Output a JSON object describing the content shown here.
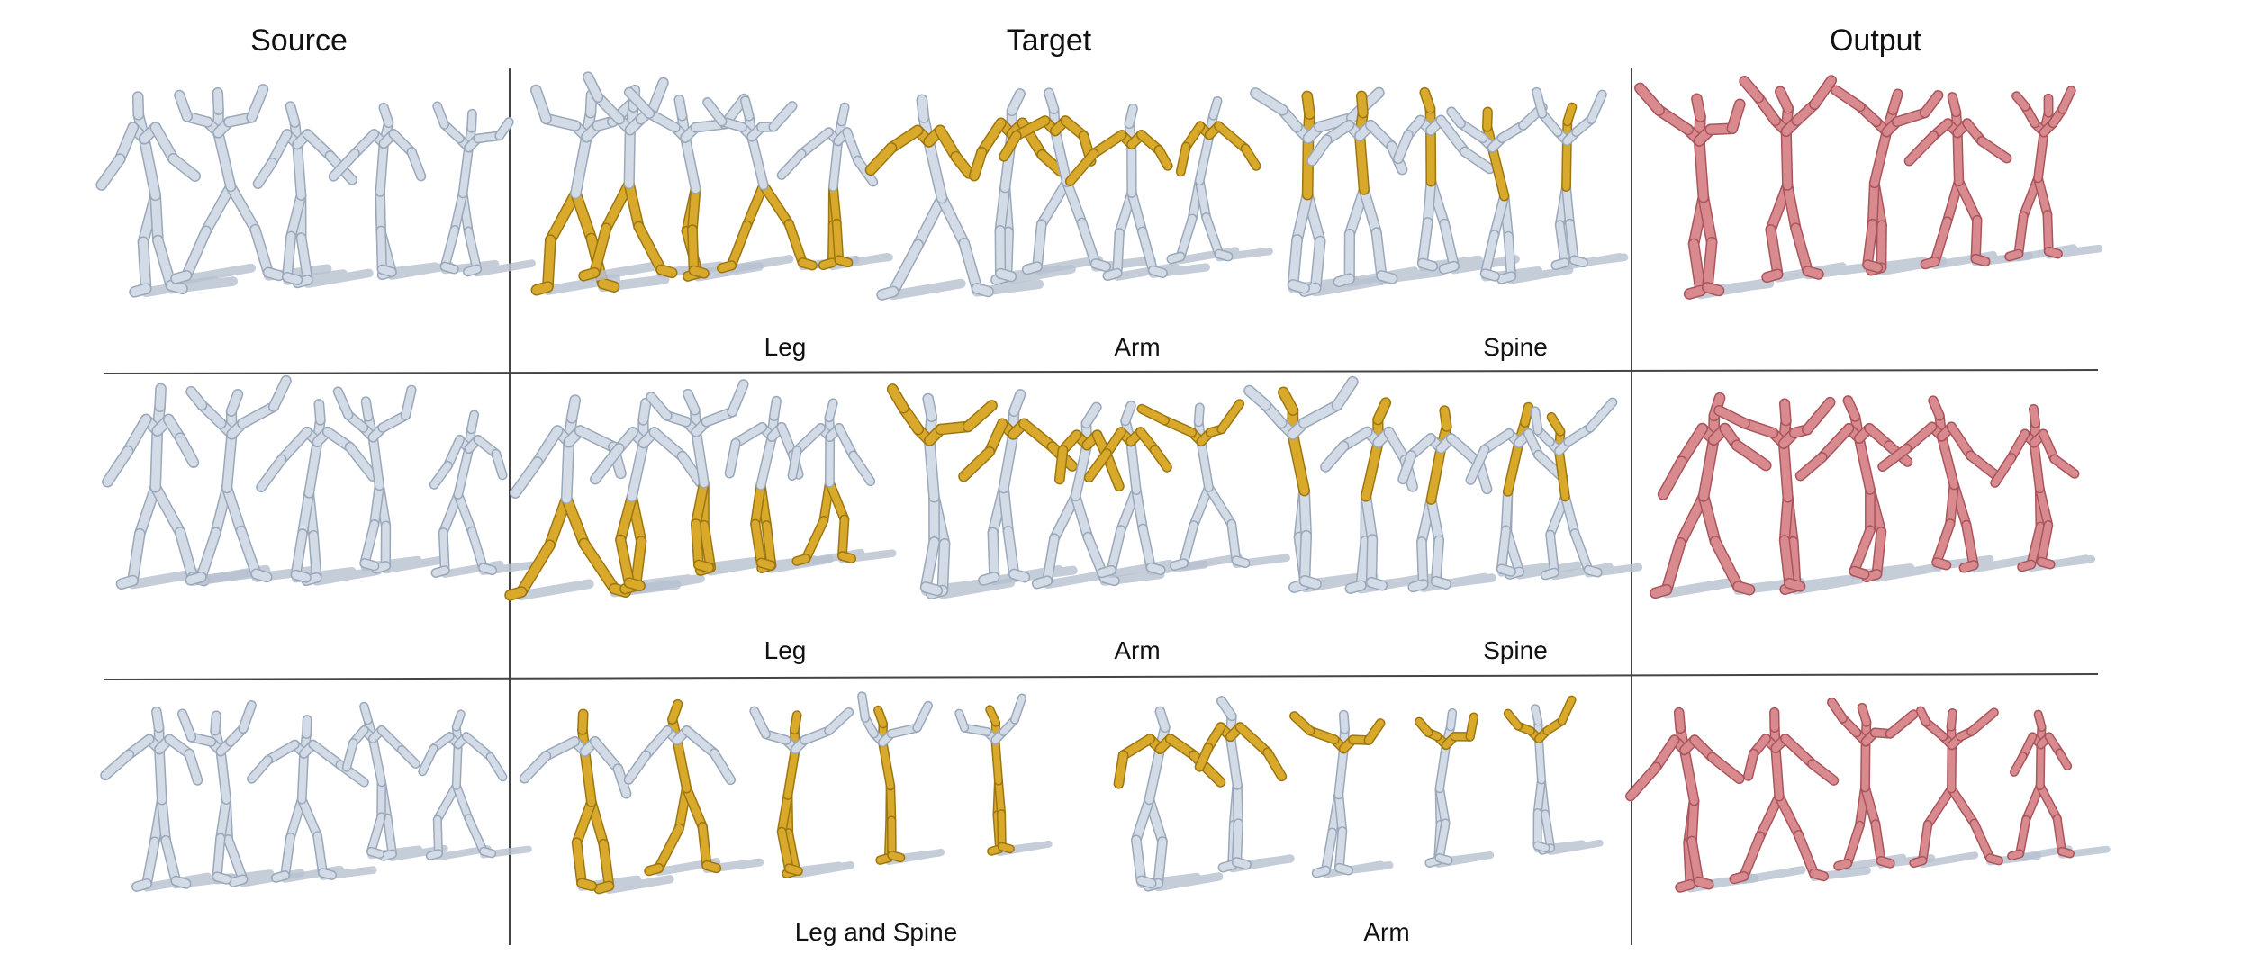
{
  "headers": {
    "source": "Source",
    "target": "Target",
    "output": "Output"
  },
  "rows": [
    {
      "target_labels": [
        "Leg",
        "Arm",
        "Spine"
      ],
      "target_highlight": [
        "leg",
        "arm",
        "spine"
      ]
    },
    {
      "target_labels": [
        "Leg",
        "Arm",
        "Spine"
      ],
      "target_highlight": [
        "leg",
        "arm",
        "spine"
      ]
    },
    {
      "target_labels": [
        "Leg and Spine",
        "Arm"
      ],
      "target_highlight": [
        "legspine",
        "arm"
      ]
    }
  ],
  "colors": {
    "neutral_skeleton": "#d3dbe6",
    "neutral_outline": "#9aa8ba",
    "highlight_skeleton": "#d9a92b",
    "highlight_outline": "#9c7612",
    "output_skeleton": "#d98a8e",
    "output_outline": "#a8555b",
    "shadow": "#b6c0cf",
    "divider": "#444444"
  },
  "icons": {
    "figure": "skeleton-figure-icon"
  }
}
